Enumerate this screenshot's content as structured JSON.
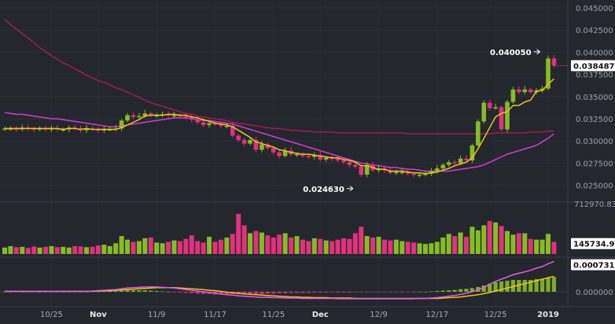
{
  "chart_data": {
    "type": "candlestick",
    "price_axis": {
      "ticks": [
        "0.045000",
        "0.042500",
        "0.040000",
        "0.037500",
        "0.035000",
        "0.032500",
        "0.030000",
        "0.027500",
        "0.025000"
      ],
      "values": [
        0.045,
        0.0425,
        0.04,
        0.0375,
        0.035,
        0.0325,
        0.03,
        0.0275,
        0.025
      ]
    },
    "price_tag": {
      "label": "0.038487",
      "value": 0.038487
    },
    "annotations": [
      {
        "label": "0.040050",
        "value": 0.04005,
        "index": 92
      },
      {
        "label": "0.024630",
        "value": 0.02463,
        "index": 60
      }
    ],
    "volume_axis": {
      "top_label": "712970.83",
      "tag_label": "145734.9",
      "tag_value": 145734.9,
      "max": 712970.83
    },
    "indicator_axis": {
      "tag_label": "0.000731",
      "tag_value": 0.000731,
      "zero_label": "0.000000"
    },
    "x_labels": [
      {
        "label": "10/25",
        "index": 8
      },
      {
        "label": "Nov",
        "index": 16
      },
      {
        "label": "11/9",
        "index": 26
      },
      {
        "label": "11/17",
        "index": 36
      },
      {
        "label": "11/25",
        "index": 46
      },
      {
        "label": "Dec",
        "index": 54
      },
      {
        "label": "12/9",
        "index": 64
      },
      {
        "label": "12/17",
        "index": 74
      },
      {
        "label": "12/25",
        "index": 84
      },
      {
        "label": "2019",
        "index": 93
      }
    ],
    "close": [
      0.0314,
      0.0314,
      0.0313,
      0.0315,
      0.0314,
      0.0313,
      0.0314,
      0.0313,
      0.0314,
      0.0313,
      0.0313,
      0.0315,
      0.0314,
      0.0312,
      0.0314,
      0.0313,
      0.0312,
      0.0313,
      0.0313,
      0.0314,
      0.0323,
      0.0329,
      0.0327,
      0.0328,
      0.0331,
      0.0329,
      0.0329,
      0.033,
      0.0329,
      0.0329,
      0.0328,
      0.0327,
      0.0324,
      0.0321,
      0.0318,
      0.032,
      0.0319,
      0.0317,
      0.0317,
      0.0306,
      0.0301,
      0.0297,
      0.0301,
      0.029,
      0.0296,
      0.0292,
      0.0287,
      0.0283,
      0.0289,
      0.0285,
      0.0285,
      0.0283,
      0.0282,
      0.0284,
      0.0279,
      0.0281,
      0.028,
      0.0278,
      0.0276,
      0.0273,
      0.0271,
      0.0262,
      0.0273,
      0.0267,
      0.0269,
      0.0267,
      0.0264,
      0.0265,
      0.0265,
      0.0263,
      0.0262,
      0.0262,
      0.0263,
      0.0266,
      0.0269,
      0.0273,
      0.0276,
      0.0275,
      0.028,
      0.0278,
      0.0295,
      0.0322,
      0.0343,
      0.0337,
      0.0338,
      0.0313,
      0.0344,
      0.0358,
      0.0355,
      0.0358,
      0.0355,
      0.0357,
      0.0359,
      0.0393,
      0.0385
    ],
    "ma_fast": [
      0.0314,
      0.0314,
      0.0314,
      0.0314,
      0.0314,
      0.0314,
      0.0314,
      0.0314,
      0.0314,
      0.0314,
      0.0313,
      0.0314,
      0.0314,
      0.0313,
      0.0314,
      0.0313,
      0.0313,
      0.0313,
      0.0313,
      0.0313,
      0.0315,
      0.0318,
      0.0321,
      0.0324,
      0.0328,
      0.0329,
      0.0329,
      0.0329,
      0.033,
      0.033,
      0.0329,
      0.0329,
      0.0327,
      0.0326,
      0.0324,
      0.0322,
      0.032,
      0.0319,
      0.0318,
      0.0316,
      0.0312,
      0.0308,
      0.0304,
      0.0299,
      0.0297,
      0.0295,
      0.0293,
      0.029,
      0.0289,
      0.0287,
      0.0286,
      0.0285,
      0.0285,
      0.0284,
      0.0283,
      0.0282,
      0.0281,
      0.0281,
      0.0279,
      0.0278,
      0.0276,
      0.0272,
      0.0272,
      0.027,
      0.0268,
      0.0268,
      0.0266,
      0.0266,
      0.0266,
      0.0265,
      0.0264,
      0.0264,
      0.0263,
      0.0264,
      0.0265,
      0.0267,
      0.0269,
      0.0272,
      0.0274,
      0.0276,
      0.0281,
      0.0291,
      0.0303,
      0.0315,
      0.0327,
      0.0331,
      0.0333,
      0.034,
      0.034,
      0.0344,
      0.0346,
      0.0356,
      0.0357,
      0.0364,
      0.037
    ],
    "ma_mid": [
      0.0332,
      0.0331,
      0.033,
      0.033,
      0.0329,
      0.0328,
      0.0327,
      0.0326,
      0.0325,
      0.0325,
      0.0324,
      0.0323,
      0.0322,
      0.0321,
      0.032,
      0.0319,
      0.0318,
      0.0317,
      0.0316,
      0.0316,
      0.0317,
      0.0318,
      0.0319,
      0.032,
      0.0321,
      0.0322,
      0.0323,
      0.0324,
      0.0325,
      0.0326,
      0.0326,
      0.0326,
      0.0325,
      0.0324,
      0.0323,
      0.0323,
      0.0322,
      0.0321,
      0.032,
      0.0319,
      0.0317,
      0.0315,
      0.0313,
      0.0311,
      0.0309,
      0.0307,
      0.0305,
      0.0303,
      0.0301,
      0.0299,
      0.0297,
      0.0295,
      0.0293,
      0.0291,
      0.0289,
      0.0287,
      0.0285,
      0.0283,
      0.0281,
      0.0279,
      0.0277,
      0.0275,
      0.0274,
      0.0273,
      0.0272,
      0.0271,
      0.027,
      0.027,
      0.0269,
      0.0268,
      0.0268,
      0.0267,
      0.0266,
      0.0266,
      0.0266,
      0.0266,
      0.0266,
      0.0267,
      0.0268,
      0.0269,
      0.027,
      0.0271,
      0.0273,
      0.0276,
      0.0279,
      0.0282,
      0.0285,
      0.0287,
      0.0289,
      0.0291,
      0.0293,
      0.0295,
      0.0299,
      0.0303,
      0.0308
    ],
    "ma_slow": [
      0.0437,
      0.0431,
      0.0426,
      0.0421,
      0.0416,
      0.0411,
      0.0405,
      0.0401,
      0.0396,
      0.0392,
      0.0388,
      0.0385,
      0.0381,
      0.0378,
      0.0374,
      0.0371,
      0.0368,
      0.0366,
      0.0363,
      0.036,
      0.0358,
      0.0355,
      0.0352,
      0.0349,
      0.0346,
      0.0343,
      0.0341,
      0.0339,
      0.0337,
      0.0335,
      0.0333,
      0.0331,
      0.033,
      0.0328,
      0.0327,
      0.0326,
      0.0325,
      0.0324,
      0.0323,
      0.0321,
      0.032,
      0.0319,
      0.0318,
      0.0317,
      0.0316,
      0.0315,
      0.0314,
      0.0314,
      0.0313,
      0.0312,
      0.0312,
      0.0311,
      0.0311,
      0.031,
      0.031,
      0.031,
      0.031,
      0.0309,
      0.0309,
      0.0309,
      0.0309,
      0.0309,
      0.0309,
      0.0309,
      0.0309,
      0.0309,
      0.0309,
      0.0309,
      0.0309,
      0.0308,
      0.0308,
      0.0308,
      0.0308,
      0.0308,
      0.0308,
      0.0308,
      0.0308,
      0.0308,
      0.0308,
      0.0308,
      0.0308,
      0.0308,
      0.0308,
      0.0308,
      0.0309,
      0.0309,
      0.0309,
      0.0309,
      0.0309,
      0.0309,
      0.031,
      0.031,
      0.031,
      0.0311,
      0.0311
    ],
    "volume": [
      90000,
      110000,
      95000,
      100000,
      85000,
      105000,
      90000,
      100000,
      110000,
      95000,
      100000,
      90000,
      110000,
      105000,
      95000,
      100000,
      120000,
      130000,
      110000,
      150000,
      250000,
      200000,
      170000,
      180000,
      220000,
      230000,
      160000,
      150000,
      170000,
      190000,
      180000,
      210000,
      260000,
      180000,
      160000,
      240000,
      170000,
      200000,
      230000,
      280000,
      560000,
      400000,
      290000,
      320000,
      300000,
      260000,
      230000,
      270000,
      290000,
      230000,
      250000,
      200000,
      180000,
      220000,
      210000,
      190000,
      180000,
      200000,
      220000,
      210000,
      290000,
      380000,
      250000,
      230000,
      240000,
      200000,
      190000,
      200000,
      180000,
      170000,
      160000,
      150000,
      140000,
      150000,
      170000,
      230000,
      280000,
      250000,
      300000,
      240000,
      380000,
      330000,
      400000,
      460000,
      440000,
      390000,
      320000,
      270000,
      290000,
      290000,
      210000,
      200000,
      200000,
      280000,
      170000
    ],
    "macd": [
      1e-05,
      1e-05,
      1.5e-05,
      1e-05,
      1e-05,
      5e-06,
      1e-05,
      1e-05,
      5e-06,
      1e-05,
      1e-05,
      1e-05,
      1.5e-05,
      1e-05,
      1e-05,
      2e-05,
      3e-05,
      4e-05,
      5e-05,
      6e-05,
      8e-05,
      0.0001,
      0.00011,
      0.00012,
      0.00013,
      0.00013,
      0.00013,
      0.00012,
      0.00011,
      0.0001,
      8e-05,
      6e-05,
      4e-05,
      2e-05,
      0,
      -2e-05,
      -4e-05,
      -6e-05,
      -8e-05,
      -9e-05,
      -0.00011,
      -0.00012,
      -0.00013,
      -0.00014,
      -0.00015,
      -0.00015,
      -0.00016,
      -0.00016,
      -0.00017,
      -0.00017,
      -0.00017,
      -0.00018,
      -0.00018,
      -0.00018,
      -0.00018,
      -0.00018,
      -0.00018,
      -0.00019,
      -0.00019,
      -0.00019,
      -0.00019,
      -0.00019,
      -0.00019,
      -0.00019,
      -0.00019,
      -0.00019,
      -0.00019,
      -0.00019,
      -0.00019,
      -0.00019,
      -0.00019,
      -0.00018,
      -0.00018,
      -0.00017,
      -0.00016,
      -0.00014,
      -0.00012,
      -0.0001,
      -7e-05,
      -4e-05,
      0,
      5e-05,
      0.00012,
      0.0002,
      0.00028,
      0.00034,
      0.0004,
      0.00046,
      0.0005,
      0.00054,
      0.00058,
      0.00064,
      0.00068,
      0.00076,
      0.00082
    ],
    "signal": [
      1e-05,
      1e-05,
      1e-05,
      1e-05,
      1e-05,
      1e-05,
      1e-05,
      1e-05,
      1e-05,
      1e-05,
      1e-05,
      1e-05,
      1e-05,
      1e-05,
      1e-05,
      1.5e-05,
      2e-05,
      2.5e-05,
      3e-05,
      4e-05,
      5e-05,
      6e-05,
      7e-05,
      8e-05,
      9e-05,
      0.0001,
      0.00011,
      0.00011,
      0.00011,
      0.00011,
      0.0001,
      9e-05,
      8e-05,
      7e-05,
      6e-05,
      4e-05,
      3e-05,
      1e-05,
      -1e-05,
      -3e-05,
      -4e-05,
      -6e-05,
      -7e-05,
      -8e-05,
      -9e-05,
      -0.0001,
      -0.00011,
      -0.00012,
      -0.00013,
      -0.00014,
      -0.00014,
      -0.00015,
      -0.00015,
      -0.00016,
      -0.00016,
      -0.00016,
      -0.00017,
      -0.00017,
      -0.00017,
      -0.00017,
      -0.00018,
      -0.00018,
      -0.00018,
      -0.00018,
      -0.00018,
      -0.00018,
      -0.00018,
      -0.00018,
      -0.00018,
      -0.00018,
      -0.00018,
      -0.00018,
      -0.00018,
      -0.00018,
      -0.00018,
      -0.00017,
      -0.00016,
      -0.00015,
      -0.00014,
      -0.00012,
      -0.0001,
      -8e-05,
      -5e-05,
      -2e-05,
      2e-05,
      6e-05,
      0.0001,
      0.00014,
      0.00018,
      0.00022,
      0.00026,
      0.0003,
      0.00034,
      0.00038,
      0.00042
    ],
    "colors": {
      "background": "#24272e",
      "up": "#86bc25",
      "down": "#e0327f",
      "ma_fast": "#f0c21c",
      "ma_mid": "#d43ad8",
      "ma_slow": "#a01e52",
      "macd_line": "#e45be8",
      "signal_line": "#f0c21c",
      "tag": "#ffffff",
      "tag_red": "#e0327f"
    }
  }
}
